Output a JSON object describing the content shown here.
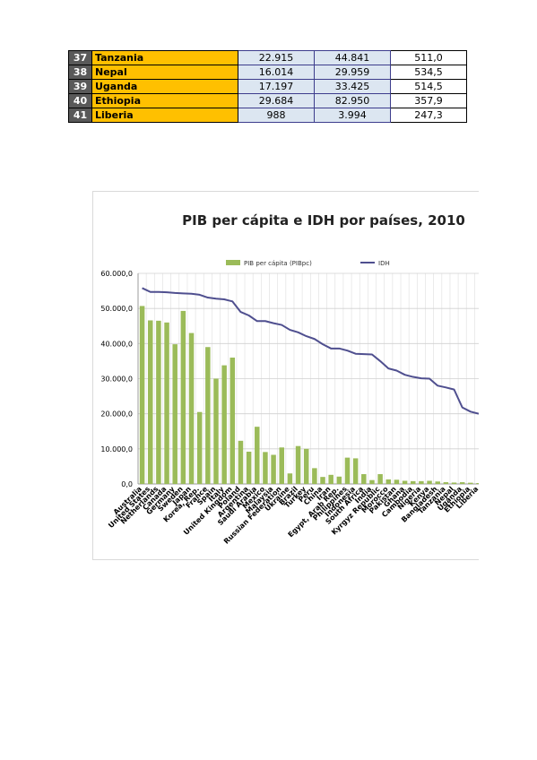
{
  "table": {
    "rows": [
      {
        "idx": "37",
        "country": "Tanzania",
        "c1": "22.915",
        "c2": "44.841",
        "c3": "511,0"
      },
      {
        "idx": "38",
        "country": "Nepal",
        "c1": "16.014",
        "c2": "29.959",
        "c3": "534,5"
      },
      {
        "idx": "39",
        "country": "Uganda",
        "c1": "17.197",
        "c2": "33.425",
        "c3": "514,5"
      },
      {
        "idx": "40",
        "country": "Ethiopia",
        "c1": "29.684",
        "c2": "82.950",
        "c3": "357,9"
      },
      {
        "idx": "41",
        "country": "Liberia",
        "c1": "988",
        "c2": "3.994",
        "c3": "247,3"
      }
    ]
  },
  "chart_data": {
    "type": "bar",
    "title": "PIB per cápita e IDH por países, 2010",
    "ylim": [
      0,
      60000
    ],
    "yticks": [
      "0,0",
      "10.000,0",
      "20.000,0",
      "30.000,0",
      "40.000,0",
      "50.000,0",
      "60.000,0"
    ],
    "legend_position": "top",
    "grid": true,
    "categories": [
      "Australia",
      "United States",
      "Netherlands",
      "Canada",
      "Germany",
      "Sweden",
      "Japan",
      "Korea, Rep.",
      "France",
      "Spain",
      "Italy",
      "United Kingdom",
      "Poland",
      "Argentina",
      "Saudi Arabia",
      "Mexico",
      "Malaysia",
      "Russian Federation",
      "Ukraine",
      "Brazil",
      "Turkey",
      "Peru",
      "China",
      "Iran",
      "Egypt, Arab Rep.",
      "Philippines",
      "Indonesia",
      "South Africa",
      "India",
      "Kyrgyz Republic",
      "Morocco",
      "Pakistan",
      "Ghana",
      "Cambodia",
      "Nigeria",
      "Kenya",
      "Bangladesh",
      "Tanzania",
      "Nepal",
      "Uganda",
      "Ethiopia",
      "Liberia"
    ],
    "series": [
      {
        "name": "PIB per cápita (PIBpc)",
        "kind": "bar",
        "color": "#9bbb59",
        "values": [
          50700,
          46600,
          46500,
          46000,
          39800,
          49300,
          43000,
          20500,
          39000,
          30000,
          33800,
          36000,
          12300,
          9200,
          16300,
          9100,
          8300,
          10400,
          3000,
          10800,
          10000,
          4500,
          2000,
          2600,
          2100,
          7500,
          7300,
          2800,
          1100,
          2800,
          1300,
          1200,
          900,
          800,
          800,
          900,
          700,
          500,
          400,
          500,
          350,
          250
        ]
      },
      {
        "name": "IDH",
        "kind": "line",
        "color": "#4f4f8f",
        "values": [
          55800,
          54700,
          54700,
          54600,
          54400,
          54300,
          54200,
          53900,
          53100,
          52800,
          52600,
          52000,
          49000,
          48000,
          46400,
          46400,
          45800,
          45300,
          43900,
          43200,
          42100,
          41300,
          39800,
          38600,
          38600,
          38000,
          37100,
          37000,
          36900,
          35000,
          32900,
          32300,
          31100,
          30500,
          30100,
          30000,
          28000,
          27500,
          26900,
          21800,
          20600,
          20000
        ]
      }
    ]
  }
}
